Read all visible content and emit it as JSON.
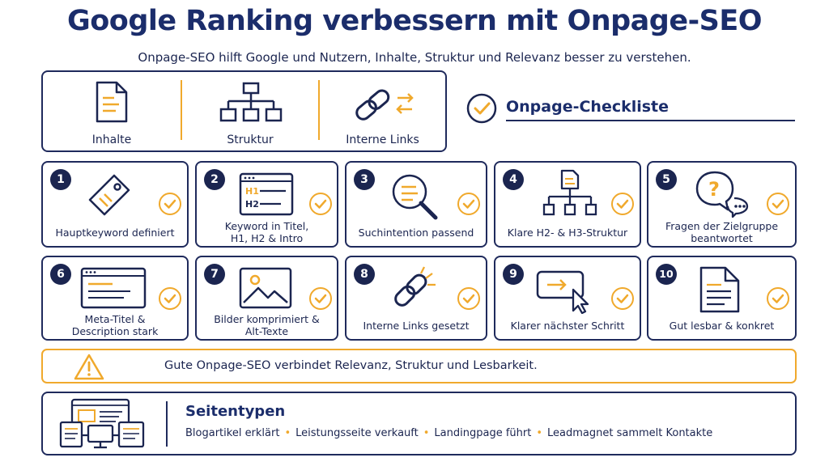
{
  "header": {
    "title": "Google Ranking verbessern mit Onpage-SEO",
    "subtitle": "Onpage-SEO hilft Google und Nutzern, Inhalte, Struktur und Relevanz besser zu verstehen."
  },
  "pillars": [
    {
      "label": "Inhalte",
      "icon": "document-icon"
    },
    {
      "label": "Struktur",
      "icon": "sitemap-icon"
    },
    {
      "label": "Interne Links",
      "icon": "link-icon"
    }
  ],
  "checklist": {
    "title": "Onpage-Checkliste",
    "items": [
      {
        "number": "1",
        "label": "Hauptkeyword definiert",
        "icon": "tag-icon"
      },
      {
        "number": "2",
        "label": "Keyword in Titel, H1, H2 & Intro",
        "icon": "headings-icon"
      },
      {
        "number": "3",
        "label": "Suchintention passend",
        "icon": "magnifier-icon"
      },
      {
        "number": "4",
        "label": "Klare H2- & H3-Struktur",
        "icon": "hierarchy-icon"
      },
      {
        "number": "5",
        "label": "Fragen der Zielgruppe beantwortet",
        "icon": "question-bubble-icon"
      },
      {
        "number": "6",
        "label": "Meta-Titel & Description stark",
        "icon": "browser-window-icon"
      },
      {
        "number": "7",
        "label": "Bilder komprimiert & Alt-Texte",
        "icon": "image-icon"
      },
      {
        "number": "8",
        "label": "Interne Links gesetzt",
        "icon": "link-icon"
      },
      {
        "number": "9",
        "label": "Klarer nächster Schritt",
        "icon": "cta-button-icon"
      },
      {
        "number": "10",
        "label": "Gut lesbar & konkret",
        "icon": "document-icon"
      }
    ]
  },
  "notice": {
    "text": "Gute Onpage-SEO verbindet Relevanz, Struktur und Lesbarkeit.",
    "icon": "warning-icon"
  },
  "page_types": {
    "title": "Seitentypen",
    "items": [
      "Blogartikel erklärt",
      "Leistungsseite verkauft",
      "Landingpage führt",
      "Leadmagnet sammelt Kontakte"
    ],
    "icon": "devices-icon"
  },
  "colors": {
    "navy": "#1b2550",
    "accent": "#f0a92c"
  }
}
